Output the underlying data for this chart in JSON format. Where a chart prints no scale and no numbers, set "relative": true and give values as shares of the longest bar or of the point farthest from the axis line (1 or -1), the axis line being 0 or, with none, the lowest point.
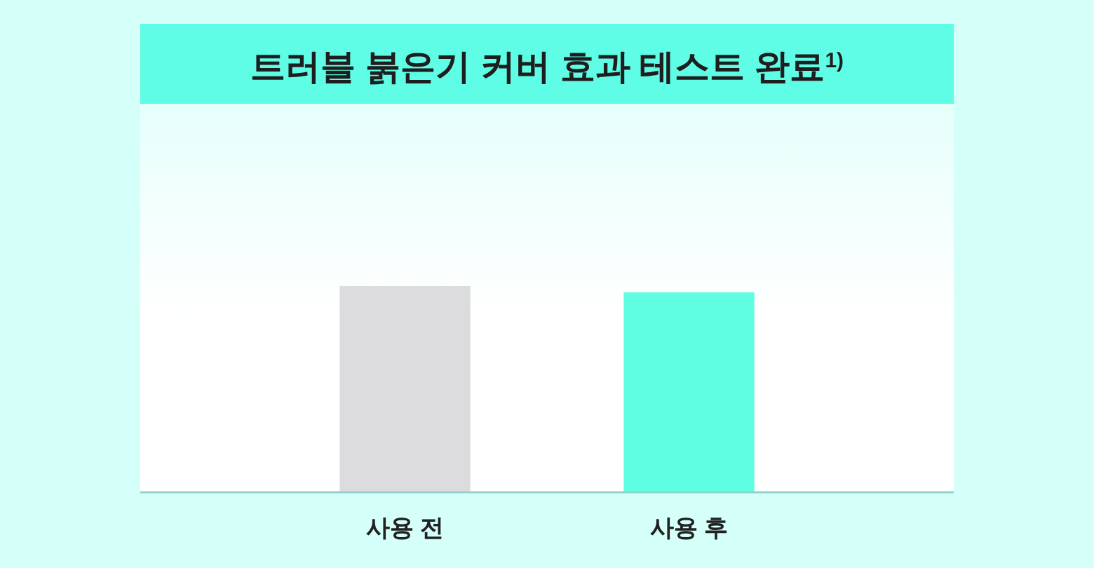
{
  "chart_data": {
    "type": "bar",
    "title": "트러블 붉은기 커버 효과 테스트 완료$^{1)}$",
    "categories": [
      "사용 전",
      "사용 후"
    ],
    "values": [
      1,
      0.97
    ],
    "colors": [
      "#dcdbde",
      "#5ffde2"
    ],
    "relative": true
  }
}
